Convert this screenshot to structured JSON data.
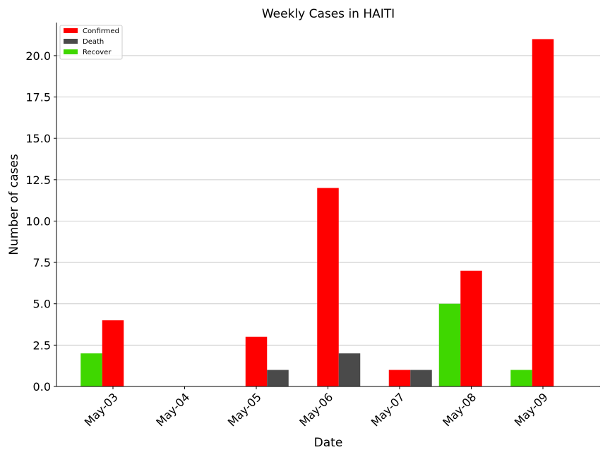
{
  "chart_data": {
    "type": "bar",
    "title": "Weekly Cases in HAITI",
    "xlabel": "Date",
    "ylabel": "Number of cases",
    "categories": [
      "May-03",
      "May-04",
      "May-05",
      "May-06",
      "May-07",
      "May-08",
      "May-09"
    ],
    "series": [
      {
        "name": "Recover",
        "color": "#3fd700",
        "values": [
          2,
          0,
          0,
          0,
          0,
          5,
          1
        ]
      },
      {
        "name": "Confirmed",
        "color": "#ff0000",
        "values": [
          4,
          0,
          3,
          12,
          1,
          7,
          21
        ]
      },
      {
        "name": "Death",
        "color": "#4a4a4a",
        "values": [
          0,
          0,
          1,
          2,
          1,
          0,
          0
        ]
      }
    ],
    "legend_order": [
      "Confirmed",
      "Death",
      "Recover"
    ],
    "legend_position": "top-left",
    "ylim": [
      0,
      22
    ],
    "yticks": [
      "0.0",
      "2.5",
      "5.0",
      "7.5",
      "10.0",
      "12.5",
      "15.0",
      "17.5",
      "20.0"
    ],
    "grid": "horizontal"
  }
}
